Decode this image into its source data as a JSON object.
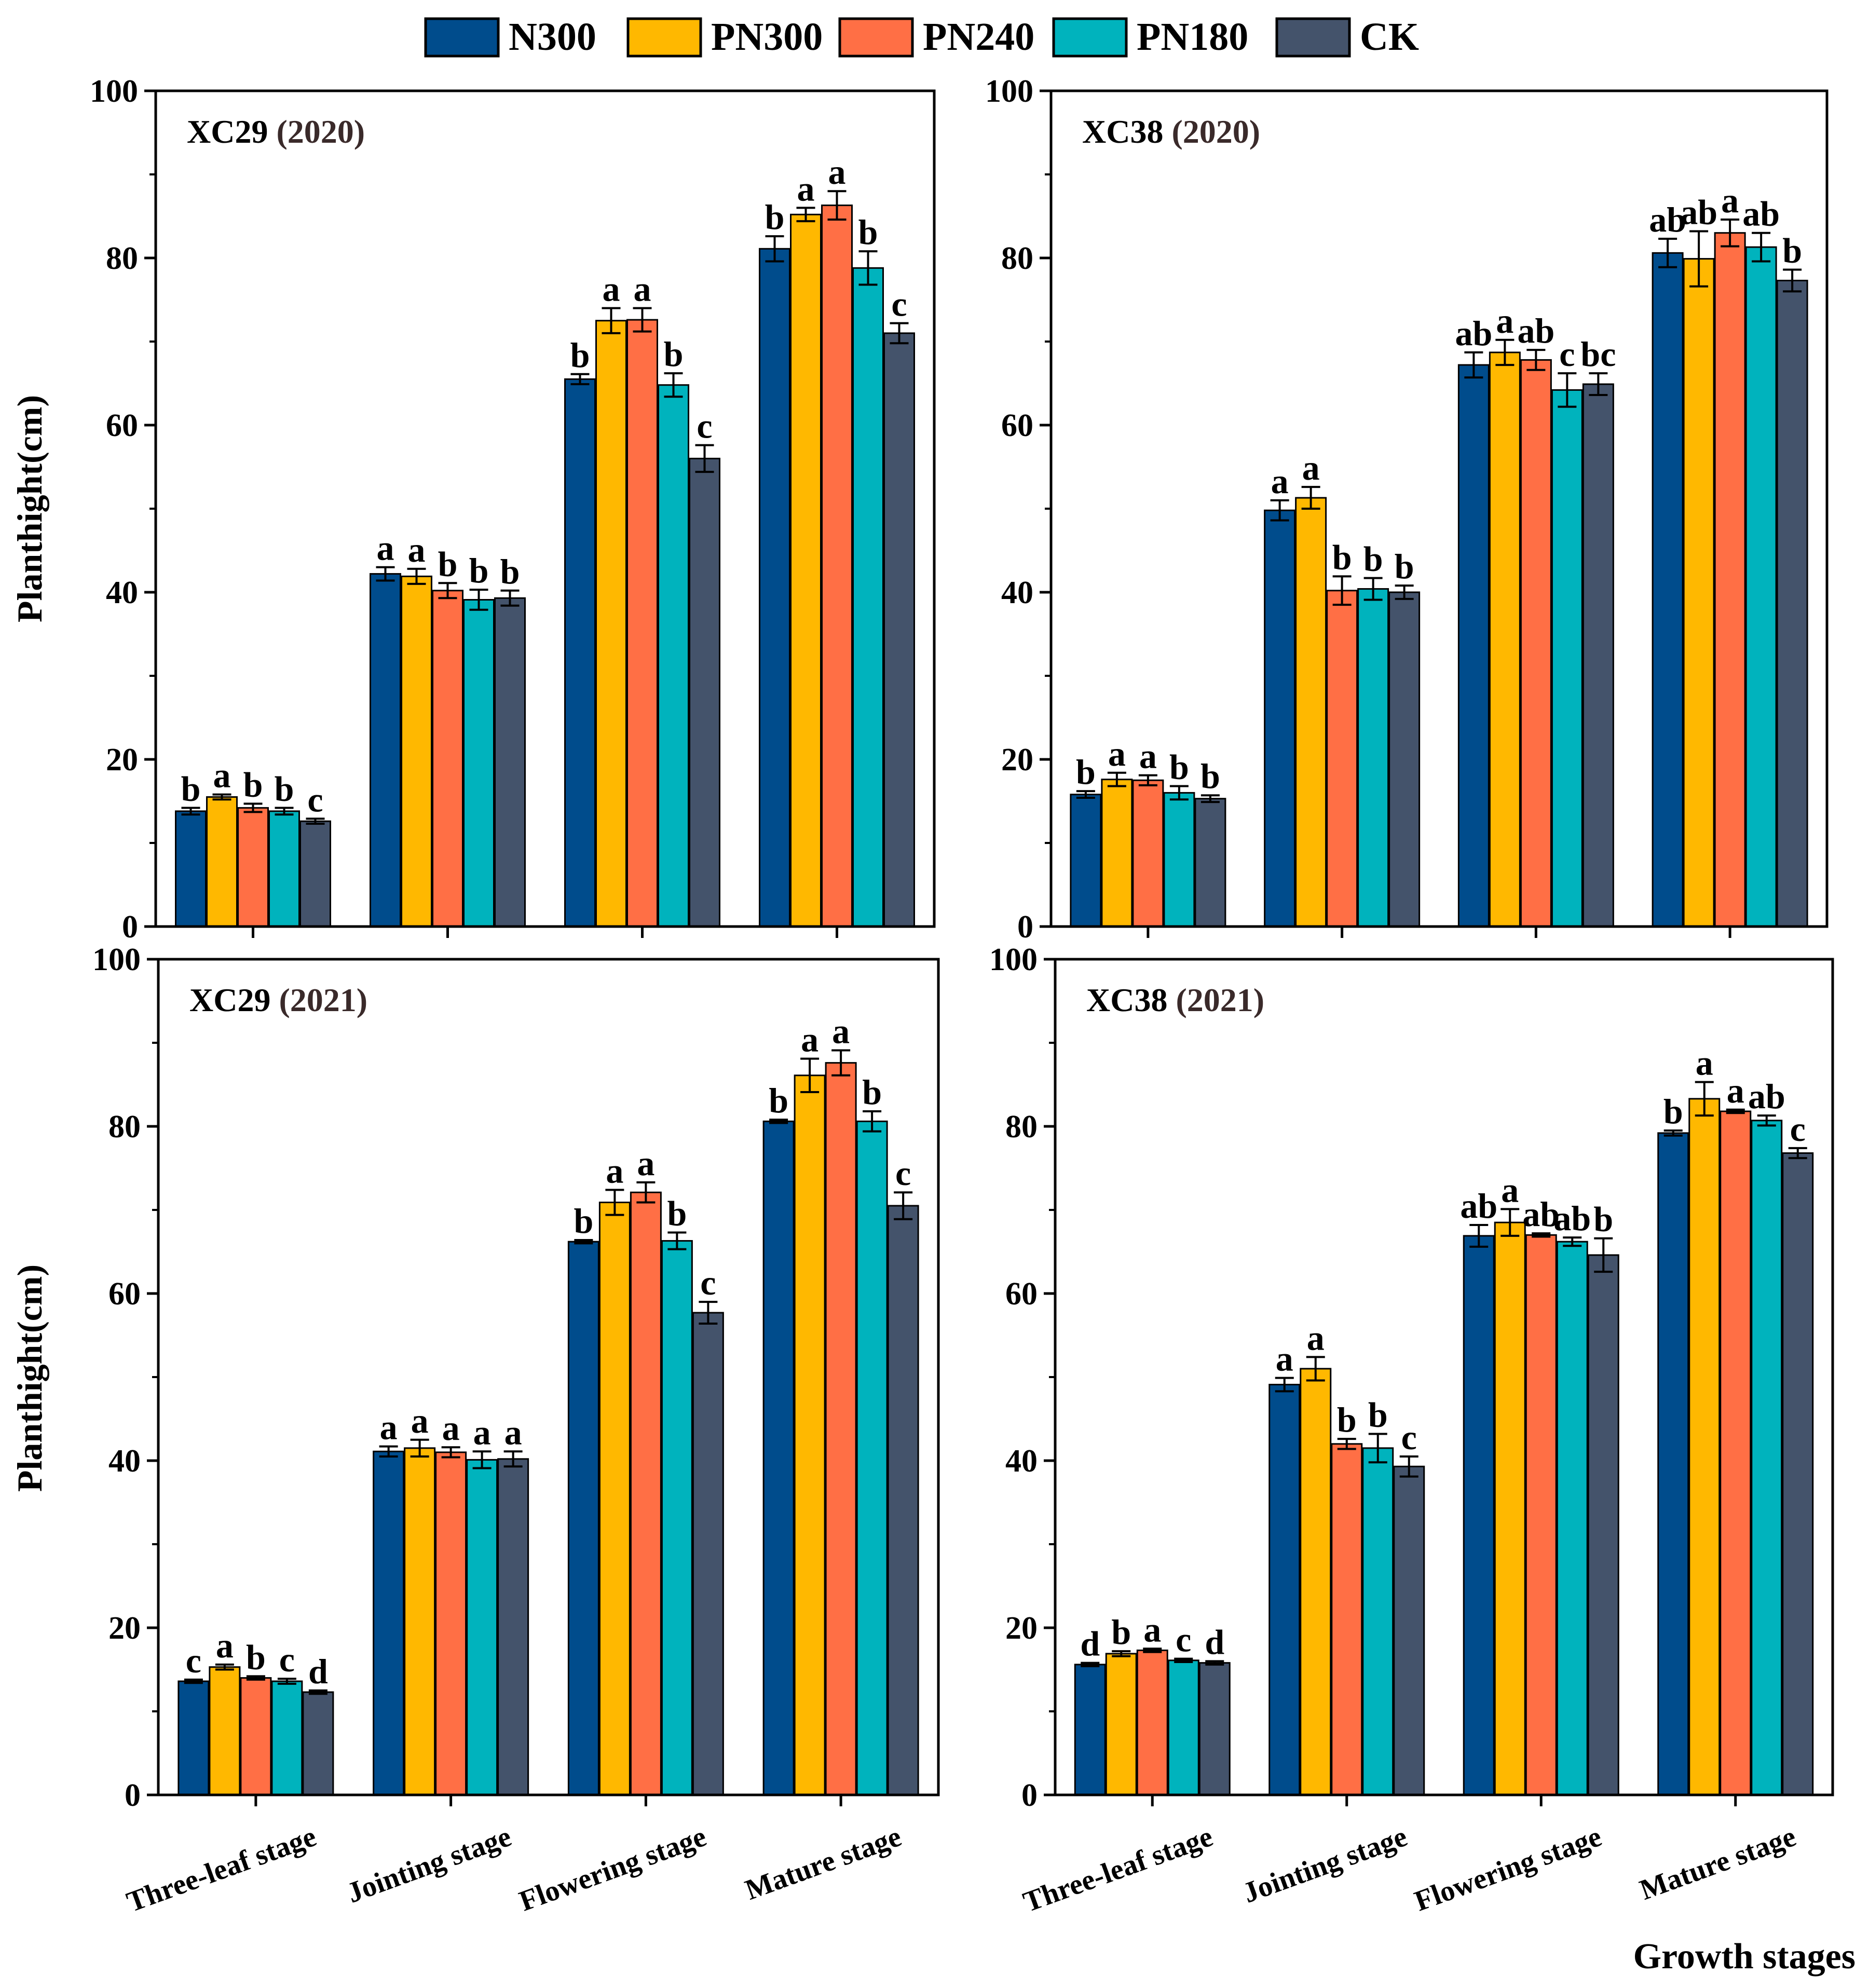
{
  "legend": [
    {
      "name": "N300",
      "color": "#004C8C"
    },
    {
      "name": "PN300",
      "color": "#FFB800"
    },
    {
      "name": "PN240",
      "color": "#FF6F45"
    },
    {
      "name": "PN180",
      "color": "#00B3BD"
    },
    {
      "name": "CK",
      "color": "#44536B"
    }
  ],
  "y_axis_label": "Planthight(cm)",
  "x_axis_label": "Growth stages",
  "chart_data": [
    {
      "type": "bar",
      "title": "XC29",
      "year": "(2020)",
      "ylabel": "Planthight(cm)",
      "ylim": [
        0,
        100
      ],
      "yticks": [
        0,
        20,
        40,
        60,
        80,
        100
      ],
      "categories": [
        "Three-leaf stage",
        "Jointing stage",
        "Flowering stage",
        "Mature stage"
      ],
      "series": [
        {
          "name": "N300",
          "values": [
            13.8,
            42.2,
            65.5,
            81.1
          ],
          "errors": [
            0.4,
            0.8,
            0.6,
            1.5
          ],
          "labels": [
            "b",
            "a",
            "b",
            "b"
          ]
        },
        {
          "name": "PN300",
          "values": [
            15.5,
            41.9,
            72.5,
            85.2
          ],
          "errors": [
            0.3,
            0.9,
            1.5,
            0.8
          ],
          "labels": [
            "a",
            "a",
            "a",
            "a"
          ]
        },
        {
          "name": "PN240",
          "values": [
            14.2,
            40.2,
            72.6,
            86.3
          ],
          "errors": [
            0.5,
            0.9,
            1.4,
            1.7
          ],
          "labels": [
            "b",
            "b",
            "a",
            "a"
          ]
        },
        {
          "name": "PN180",
          "values": [
            13.8,
            39.1,
            64.8,
            78.8
          ],
          "errors": [
            0.4,
            1.2,
            1.4,
            2.0
          ],
          "labels": [
            "b",
            "b",
            "b",
            "b"
          ]
        },
        {
          "name": "CK",
          "values": [
            12.6,
            39.3,
            56.0,
            71.0
          ],
          "errors": [
            0.3,
            0.9,
            1.6,
            1.2
          ],
          "labels": [
            "c",
            "b",
            "c",
            "c"
          ]
        }
      ]
    },
    {
      "type": "bar",
      "title": "XC38",
      "year": "(2020)",
      "ylabel": "Planthight(cm)",
      "ylim": [
        0,
        100
      ],
      "yticks": [
        0,
        20,
        40,
        60,
        80,
        100
      ],
      "categories": [
        "Three-leaf stage",
        "Jointing stage",
        "Flowering stage",
        "Mature stage"
      ],
      "series": [
        {
          "name": "N300",
          "values": [
            15.8,
            49.8,
            67.2,
            80.6
          ],
          "errors": [
            0.4,
            1.2,
            1.5,
            1.7
          ],
          "labels": [
            "b",
            "a",
            "ab",
            "ab"
          ]
        },
        {
          "name": "PN300",
          "values": [
            17.6,
            51.3,
            68.7,
            79.9
          ],
          "errors": [
            0.8,
            1.3,
            1.5,
            3.3
          ],
          "labels": [
            "a",
            "a",
            "a",
            "ab"
          ]
        },
        {
          "name": "PN240",
          "values": [
            17.5,
            40.2,
            67.8,
            83.0
          ],
          "errors": [
            0.6,
            1.7,
            1.2,
            1.6
          ],
          "labels": [
            "a",
            "b",
            "ab",
            "a"
          ]
        },
        {
          "name": "PN180",
          "values": [
            16.0,
            40.4,
            64.2,
            81.3
          ],
          "errors": [
            0.8,
            1.3,
            2.0,
            1.7
          ],
          "labels": [
            "b",
            "b",
            "c",
            "ab"
          ]
        },
        {
          "name": "CK",
          "values": [
            15.3,
            40.0,
            64.9,
            77.3
          ],
          "errors": [
            0.4,
            0.8,
            1.3,
            1.3
          ],
          "labels": [
            "b",
            "b",
            "bc",
            "b"
          ]
        }
      ]
    },
    {
      "type": "bar",
      "title": "XC29",
      "year": "(2021)",
      "ylabel": "Planthight(cm)",
      "ylim": [
        0,
        100
      ],
      "yticks": [
        0,
        20,
        40,
        60,
        80,
        100
      ],
      "categories": [
        "Three-leaf stage",
        "Jointing stage",
        "Flowering stage",
        "Mature stage"
      ],
      "series": [
        {
          "name": "N300",
          "values": [
            13.6,
            41.1,
            66.2,
            80.6
          ],
          "errors": [
            0.2,
            0.6,
            0.2,
            0.2
          ],
          "labels": [
            "c",
            "a",
            "b",
            "b"
          ]
        },
        {
          "name": "PN300",
          "values": [
            15.3,
            41.5,
            70.9,
            86.1
          ],
          "errors": [
            0.3,
            1.0,
            1.5,
            2.0
          ],
          "labels": [
            "a",
            "a",
            "a",
            "a"
          ]
        },
        {
          "name": "PN240",
          "values": [
            14.0,
            41.0,
            72.1,
            87.6
          ],
          "errors": [
            0.2,
            0.6,
            1.2,
            1.5
          ],
          "labels": [
            "b",
            "a",
            "a",
            "a"
          ]
        },
        {
          "name": "PN180",
          "values": [
            13.6,
            40.1,
            66.3,
            80.6
          ],
          "errors": [
            0.3,
            1.0,
            1.0,
            1.2
          ],
          "labels": [
            "c",
            "a",
            "b",
            "b"
          ]
        },
        {
          "name": "CK",
          "values": [
            12.3,
            40.2,
            57.7,
            70.5
          ],
          "errors": [
            0.2,
            0.9,
            1.3,
            1.6
          ],
          "labels": [
            "d",
            "a",
            "c",
            "c"
          ]
        }
      ]
    },
    {
      "type": "bar",
      "title": "XC38",
      "year": "(2021)",
      "ylabel": "Planthight(cm)",
      "ylim": [
        0,
        100
      ],
      "yticks": [
        0,
        20,
        40,
        60,
        80,
        100
      ],
      "categories": [
        "Three-leaf stage",
        "Jointing stage",
        "Flowering stage",
        "Mature stage"
      ],
      "series": [
        {
          "name": "N300",
          "values": [
            15.6,
            49.1,
            66.9,
            79.2
          ],
          "errors": [
            0.2,
            0.8,
            1.3,
            0.3
          ],
          "labels": [
            "d",
            "a",
            "ab",
            "b"
          ]
        },
        {
          "name": "PN300",
          "values": [
            16.9,
            51.0,
            68.5,
            83.3
          ],
          "errors": [
            0.3,
            1.4,
            1.6,
            2.0
          ],
          "labels": [
            "b",
            "a",
            "a",
            "a"
          ]
        },
        {
          "name": "PN240",
          "values": [
            17.3,
            42.0,
            67.0,
            81.8
          ],
          "errors": [
            0.2,
            0.6,
            0.2,
            0.2
          ],
          "labels": [
            "a",
            "b",
            "ab",
            "a"
          ]
        },
        {
          "name": "PN180",
          "values": [
            16.1,
            41.5,
            66.2,
            80.7
          ],
          "errors": [
            0.2,
            1.7,
            0.5,
            0.6
          ],
          "labels": [
            "c",
            "b",
            "ab",
            "ab"
          ]
        },
        {
          "name": "CK",
          "values": [
            15.8,
            39.3,
            64.6,
            76.8
          ],
          "errors": [
            0.2,
            1.2,
            2.0,
            0.6
          ],
          "labels": [
            "d",
            "c",
            "b",
            "c"
          ]
        }
      ]
    }
  ]
}
